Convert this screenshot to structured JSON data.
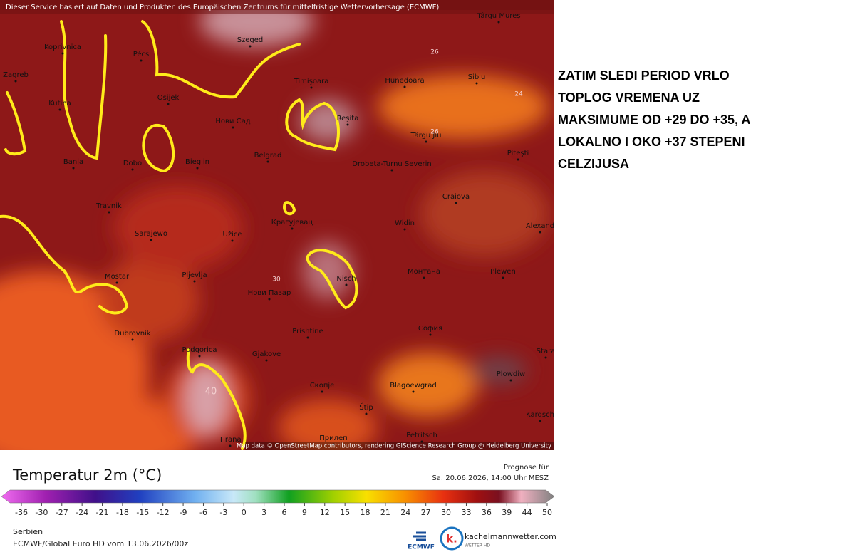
{
  "header": {
    "notice": "Dieser Service basiert auf Daten und Produkten des Europäischen Zentrums für mittelfristige Wettervorhersage (ECMWF)"
  },
  "map": {
    "cities": [
      "Zagreb",
      "Koprivnica",
      "Pécs",
      "Szeged",
      "Timişoara",
      "Hunedoara",
      "Sibiu",
      "Osijek",
      "Kutina",
      "Нови Сад",
      "Reşita",
      "Târgu Jiu",
      "Banja",
      "Dobo",
      "Bieglin",
      "Belgrad",
      "Drobeta-Turnu Severin",
      "Piteşti",
      "Craiova",
      "Travnik",
      "Крагујевац",
      "Widin",
      "Alexand",
      "Sarajewo",
      "Užice",
      "Mostar",
      "Pljevlja",
      "Нови Пазар",
      "Nisch",
      "Монтана",
      "Plewen",
      "Dubrovnik",
      "Prishtine",
      "София",
      "Podgorica",
      "Gjakove",
      "Plowdiw",
      "Скопје",
      "Blagoewgrad",
      "Štip",
      "Petritsch",
      "Прилеп",
      "Tirana",
      "Kardsch",
      "Stara",
      "Târgu Mureș"
    ],
    "contour_labels": [
      "26",
      "24",
      "26",
      "30",
      "40"
    ],
    "attribution": "Map data © OpenStreetMap contributors, rendering GIScience Research Group @ Heidelberg University"
  },
  "annotation": {
    "lines": [
      "ZATIM SLEDI PERIOD VRLO",
      "TOPLOG VREMENA UZ",
      "MAKSIMUME OD +29 DO +35, A",
      "LOKALNO I OKO +37 STEPENI",
      "CELZIJUSA"
    ]
  },
  "legend": {
    "title": "Temperatur 2m (°C)",
    "forecast_label": "Prognose für",
    "forecast_time": "Sa. 20.06.2026, 14:00 Uhr MESZ",
    "ticks": [
      -36,
      -30,
      -27,
      -24,
      -21,
      -18,
      -15,
      -12,
      -9,
      -6,
      -3,
      0,
      3,
      6,
      9,
      12,
      15,
      18,
      21,
      24,
      27,
      30,
      33,
      36,
      39,
      44,
      50
    ]
  },
  "footer": {
    "region": "Serbien",
    "model": "ECMWF/Global Euro HD vom  13.06.2026/00z",
    "ecmwf_logo": "ECMWF",
    "site": "kachelmannwetter.com",
    "site_sub": "WETTER HD"
  }
}
